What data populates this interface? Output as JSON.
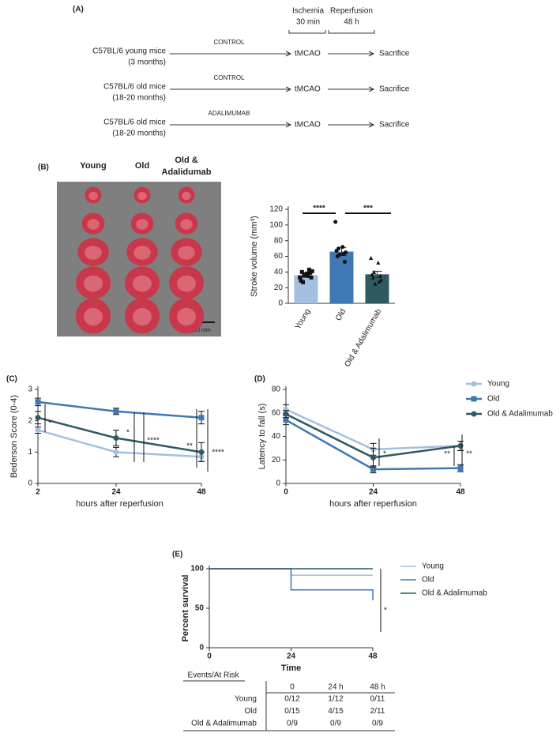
{
  "diagram": {
    "label": "(A)",
    "phases": [
      {
        "name": "Ischemia",
        "duration": "30 min"
      },
      {
        "name": "Reperfusion",
        "duration": "48 h"
      }
    ],
    "rows": [
      {
        "group": "C57BL/6 young mice",
        "age": "(3 months)",
        "treatment": "CONTROL",
        "procedure": "tMCAO",
        "outcome": "Sacrifice"
      },
      {
        "group": "C57BL/6 old mice",
        "age": "(18-20 months)",
        "treatment": "CONTROL",
        "procedure": "tMCAO",
        "outcome": "Sacrifice"
      },
      {
        "group": "C57BL/6 old mice",
        "age": "(18-20 months)",
        "treatment": "ADALIMUMAB",
        "procedure": "tMCAO",
        "outcome": "Sacrifice"
      }
    ]
  },
  "image": {
    "label": "(B)",
    "columns": [
      [
        "Young"
      ],
      [
        "Old"
      ],
      [
        "Old &",
        "Adalidumab"
      ]
    ],
    "scale": "10 mm"
  },
  "chart_data": [
    {
      "type": "bar",
      "ylabel": "Stroke volume (mm³)",
      "categories": [
        "Young",
        "Old",
        "Old & Adalimumab"
      ],
      "values": [
        36,
        66,
        37
      ],
      "errors": [
        3,
        5,
        4
      ],
      "colors": [
        "#a3bfe0",
        "#3f78b5",
        "#2f5a60"
      ],
      "points": [
        [
          33,
          38,
          29,
          35,
          40,
          43,
          27,
          39,
          36,
          33,
          37,
          41
        ],
        [
          104,
          72,
          67,
          63,
          60,
          53,
          70,
          65,
          62
        ],
        [
          58,
          52,
          37,
          28,
          33,
          35,
          40,
          30,
          25
        ]
      ],
      "ylim": [
        0,
        120
      ],
      "yticks": [
        0,
        20,
        40,
        60,
        80,
        100,
        120
      ],
      "annotations": [
        "****",
        "***"
      ]
    },
    {
      "type": "line",
      "panel": "(C)",
      "ylabel": "Bederson Score (0-4)",
      "xlabel": "hours after reperfusion",
      "x": [
        2,
        24,
        48
      ],
      "xlim": [
        2,
        48
      ],
      "xticks": [
        2,
        24,
        48
      ],
      "ylim": [
        0,
        3
      ],
      "yticks": [
        0,
        1,
        2,
        3
      ],
      "series": [
        {
          "color": "#a3bfe0",
          "values": [
            1.7,
            1.0,
            0.85
          ],
          "errors": [
            0.1,
            0.15,
            0.15
          ]
        },
        {
          "color": "#3f78b5",
          "values": [
            2.6,
            2.3,
            2.1
          ],
          "errors": [
            0.12,
            0.1,
            0.2
          ]
        },
        {
          "color": "#2f5a60",
          "values": [
            2.1,
            1.45,
            1.0
          ],
          "errors": [
            0.2,
            0.25,
            0.3
          ]
        }
      ],
      "annotations": [
        "*",
        "*",
        "****",
        "**",
        "****"
      ],
      "legend": false
    },
    {
      "type": "line",
      "panel": "(D)",
      "ylabel": "Latency to fall (s)",
      "xlabel": "hours after reperfusion",
      "x": [
        0,
        24,
        48
      ],
      "xlim": [
        0,
        48
      ],
      "xticks": [
        0,
        24,
        48
      ],
      "ylim": [
        0,
        80
      ],
      "yticks": [
        0,
        20,
        40,
        60,
        80
      ],
      "series": [
        {
          "name": "Young",
          "color": "#a3bfe0",
          "values": [
            63,
            29,
            32
          ],
          "errors": [
            4,
            5,
            4
          ]
        },
        {
          "name": "Old",
          "color": "#3f78b5",
          "values": [
            54,
            12,
            13
          ],
          "errors": [
            4,
            3,
            3
          ]
        },
        {
          "name": "Old & Adalimumab",
          "color": "#2f5a60",
          "values": [
            59,
            22,
            32
          ],
          "errors": [
            3,
            8,
            4
          ]
        }
      ],
      "annotations": [
        "*",
        "**",
        "**"
      ],
      "legend": true
    },
    {
      "type": "step",
      "panel": "(E)",
      "ylabel": "Percent survival",
      "xlabel": "Time",
      "x": [
        0,
        24,
        48
      ],
      "xlim": [
        0,
        48
      ],
      "xticks": [
        0,
        24,
        48
      ],
      "ylim": [
        0,
        100
      ],
      "yticks": [
        0,
        50,
        100
      ],
      "series": [
        {
          "name": "Young",
          "color": "#a3bfe0",
          "values": [
            100,
            91.7,
            91.7
          ]
        },
        {
          "name": "Old",
          "color": "#3f78b5",
          "values": [
            100,
            73.3,
            60
          ]
        },
        {
          "name": "Old & Adalimumab",
          "color": "#2f5a60",
          "values": [
            100,
            100,
            100
          ]
        }
      ],
      "annotations": [
        "*"
      ],
      "legend": true
    }
  ],
  "table": {
    "header": [
      "Events/At Risk",
      "0",
      "24 h",
      "48 h"
    ],
    "rows": [
      [
        "Young",
        "0/12",
        "1/12",
        "0/11"
      ],
      [
        "Old",
        "0/15",
        "4/15",
        "2/11"
      ],
      [
        "Old & Adalimumab",
        "0/9",
        "0/9",
        "0/9"
      ]
    ]
  }
}
